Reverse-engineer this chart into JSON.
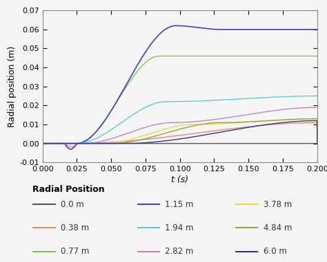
{
  "xlabel": "t (s)",
  "ylabel": "Radial position (m)",
  "xlim": [
    0.0,
    0.2
  ],
  "ylim": [
    -0.01,
    0.07
  ],
  "xticks": [
    0.0,
    0.025,
    0.05,
    0.075,
    0.1,
    0.125,
    0.15,
    0.175,
    0.2
  ],
  "yticks": [
    -0.01,
    0.0,
    0.01,
    0.02,
    0.03,
    0.04,
    0.05,
    0.06,
    0.07
  ],
  "legend_title": "Radial Position",
  "series": [
    {
      "label": "0.0 m",
      "color": "#555555"
    },
    {
      "label": "0.38 m",
      "color": "#e8896a"
    },
    {
      "label": "0.77 m",
      "color": "#7ec850"
    },
    {
      "label": "1.15 m",
      "color": "#4040c0"
    },
    {
      "label": "1.94 m",
      "color": "#5ecec8"
    },
    {
      "label": "2.82 m",
      "color": "#c882b8"
    },
    {
      "label": "3.78 m",
      "color": "#e8d84a"
    },
    {
      "label": "4.84 m",
      "color": "#8ea838"
    },
    {
      "label": "6.0 m",
      "color": "#3030a0"
    }
  ],
  "background_color": "#f5f5f5"
}
